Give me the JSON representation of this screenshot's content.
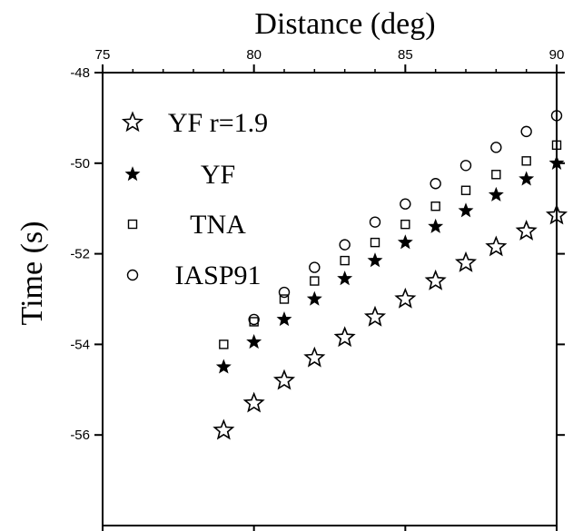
{
  "chart_data": {
    "type": "scatter",
    "title": "",
    "xlabel": "Distance (deg)",
    "ylabel": "Time (s)",
    "xlim": [
      75,
      90
    ],
    "ylim": [
      -58,
      -48
    ],
    "x_ticks": [
      75,
      80,
      85,
      90
    ],
    "y_ticks": [
      -48,
      -50,
      -52,
      -54,
      -56
    ],
    "x_tick_labels": [
      "75",
      "80",
      "85",
      "90"
    ],
    "y_tick_labels": [
      "-48",
      "-50",
      "-52",
      "-54",
      "-56"
    ],
    "x_axis_position": "top",
    "grid": false,
    "legend_position": "top-left",
    "series": [
      {
        "name": "YF r=1.9",
        "marker": "star-open-large",
        "color": "#000000",
        "x": [
          79,
          80,
          81,
          82,
          83,
          84,
          85,
          86,
          87,
          88,
          89,
          90
        ],
        "y": [
          -55.9,
          -55.3,
          -54.8,
          -54.3,
          -53.85,
          -53.4,
          -53.0,
          -52.6,
          -52.2,
          -51.85,
          -51.5,
          -51.15
        ]
      },
      {
        "name": "YF",
        "marker": "star-filled-small",
        "color": "#000000",
        "x": [
          79,
          80,
          81,
          82,
          83,
          84,
          85,
          86,
          87,
          88,
          89,
          90
        ],
        "y": [
          -54.5,
          -53.95,
          -53.45,
          -53.0,
          -52.55,
          -52.15,
          -51.75,
          -51.4,
          -51.05,
          -50.7,
          -50.35,
          -50.0
        ]
      },
      {
        "name": "TNA",
        "marker": "square-open",
        "color": "#000000",
        "x": [
          79,
          80,
          81,
          82,
          83,
          84,
          85,
          86,
          87,
          88,
          89,
          90
        ],
        "y": [
          -54.0,
          -53.5,
          -53.0,
          -52.6,
          -52.15,
          -51.75,
          -51.35,
          -50.95,
          -50.6,
          -50.25,
          -49.95,
          -49.6
        ]
      },
      {
        "name": "IASP91",
        "marker": "circle-open",
        "color": "#000000",
        "x": [
          80,
          81,
          82,
          83,
          84,
          85,
          86,
          87,
          88,
          89,
          90
        ],
        "y": [
          -53.45,
          -52.85,
          -52.3,
          -51.8,
          -51.3,
          -50.9,
          -50.45,
          -50.05,
          -49.65,
          -49.3,
          -48.95
        ]
      }
    ]
  }
}
